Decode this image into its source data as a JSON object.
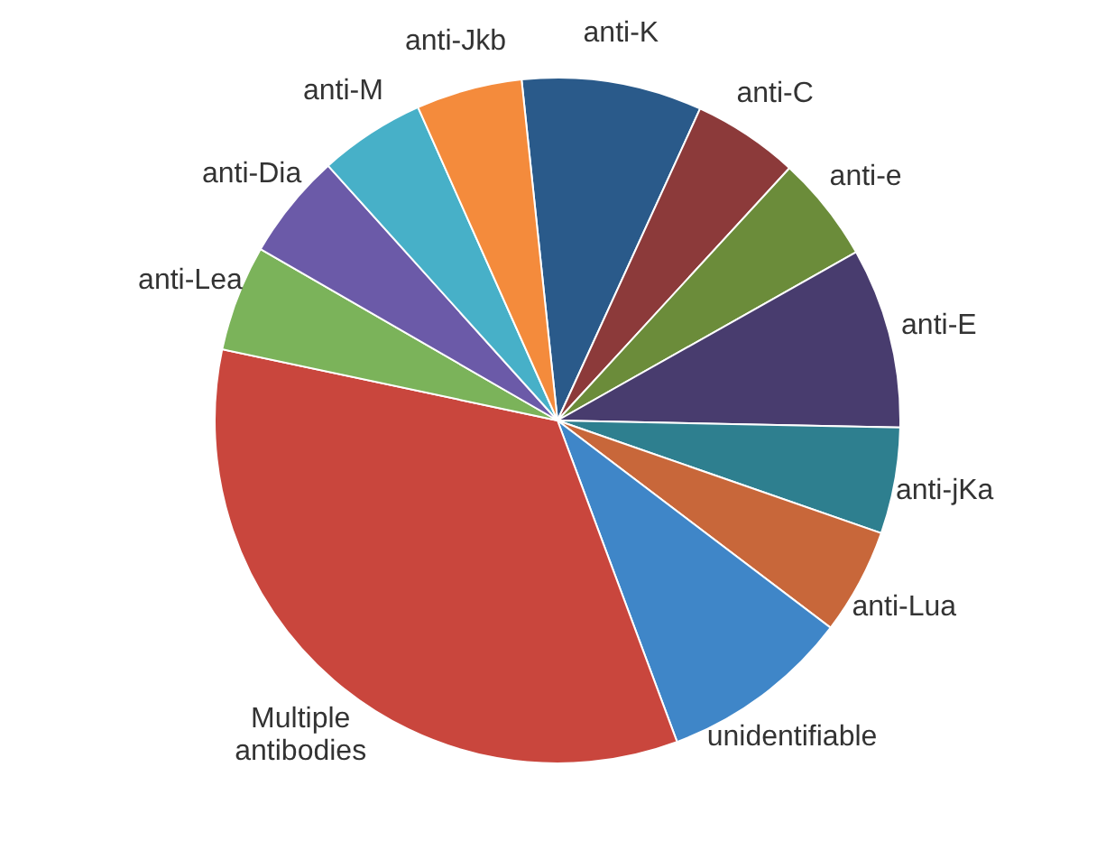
{
  "chart_data": {
    "type": "pie",
    "categories": [
      "anti-K",
      "anti-C",
      "anti-e",
      "anti-E",
      "anti-jKa",
      "anti-Lua",
      "unidentifiable",
      "Multiple\nantibodies",
      "anti-Lea",
      "anti-Dia",
      "anti-M",
      "anti-Jkb"
    ],
    "values": [
      8.5,
      5,
      5,
      8.5,
      5,
      5,
      9,
      34,
      5,
      5,
      5,
      5
    ],
    "colors": [
      "#2a5a8a",
      "#8c3a3a",
      "#6b8c3a",
      "#483c6e",
      "#2e7f8f",
      "#c8673a",
      "#3f86c8",
      "#c9463d",
      "#7bb35a",
      "#6b5aa8",
      "#47b0c8",
      "#f48b3c"
    ],
    "legend": false
  }
}
